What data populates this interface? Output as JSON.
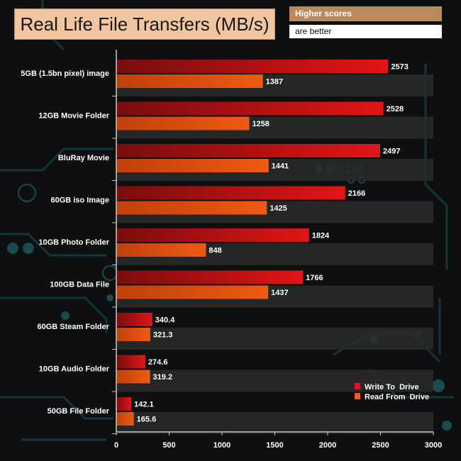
{
  "title": "Real Life File Transfers (MB/s)",
  "note_line1": "Higher scores",
  "note_line2": "are better",
  "colors": {
    "write": "#e21516",
    "read": "#f05a12",
    "row_band": "#2a2a2a",
    "axis": "#c8c8c8",
    "title_bg": "#f0c59f"
  },
  "chart_data": {
    "type": "bar",
    "orientation": "horizontal",
    "title": "Real Life File Transfers (MB/s)",
    "categories": [
      "5GB (1.5bn pixel) image",
      "12GB Movie Folder",
      "BluRay Movie",
      "60GB iso Image",
      "10GB Photo Folder",
      "100GB Data File",
      "60GB Steam Folder",
      "10GB Audio Folder",
      "50GB File Folder"
    ],
    "series": [
      {
        "name": "Write To  Drive",
        "values": [
          2573,
          2528,
          2497,
          2166,
          1824,
          1766,
          340.4,
          274.6,
          142.1
        ]
      },
      {
        "name": "Read From  Drive",
        "values": [
          1387,
          1258,
          1441,
          1425,
          848,
          1437,
          321.3,
          319.2,
          165.6
        ]
      }
    ],
    "value_labels": [
      [
        "2573",
        "2528",
        "2497",
        "2166",
        "1824",
        "1766",
        "340.4",
        "274.6",
        "142.1"
      ],
      [
        "1387",
        "1258",
        "1441",
        "1425",
        "848",
        "1437",
        "321.3",
        "319.2",
        "165.6"
      ]
    ],
    "xlim": [
      0,
      3000
    ],
    "xticks": [
      "0",
      "500",
      "1000",
      "1500",
      "2000",
      "2500",
      "3000"
    ],
    "xtick_values": [
      0,
      500,
      1000,
      1500,
      2000,
      2500,
      3000
    ],
    "legend_position": "bottom-right",
    "xlabel": "",
    "ylabel": ""
  }
}
